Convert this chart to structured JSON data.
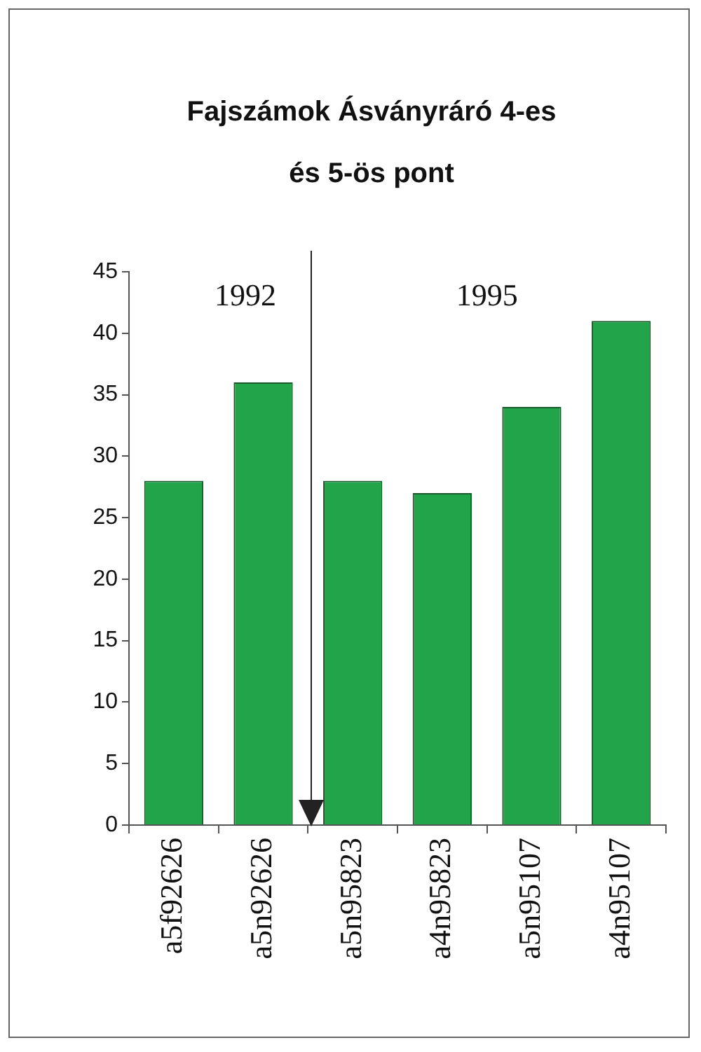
{
  "chart_data": {
    "type": "bar",
    "title": "Fajszámok Ásványráró 4-es és 5-ös pont",
    "categories": [
      "a5f92626",
      "a5n92626",
      "a5n95823",
      "a4n95823",
      "a5n95107",
      "a4n95107"
    ],
    "values": [
      28,
      36,
      28,
      27,
      34,
      41
    ],
    "color": "#22a44a",
    "ylim": [
      0,
      45
    ],
    "yticks": [
      0,
      5,
      10,
      15,
      20,
      25,
      30,
      35,
      40,
      45
    ],
    "grid": false,
    "annotations": [
      "1992",
      "1995"
    ]
  }
}
